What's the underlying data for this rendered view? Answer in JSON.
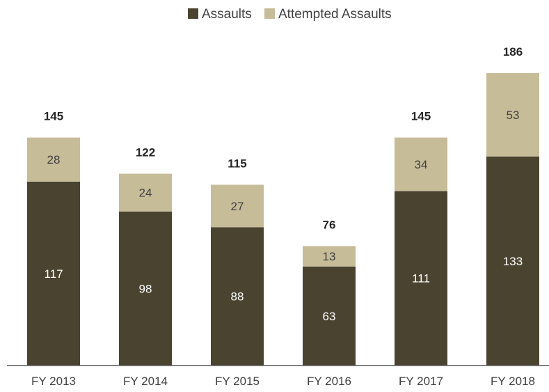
{
  "chart_data": {
    "type": "bar",
    "stacked": true,
    "categories": [
      "FY 2013",
      "FY 2014",
      "FY 2015",
      "FY 2016",
      "FY 2017",
      "FY 2018"
    ],
    "series": [
      {
        "name": "Assaults",
        "values": [
          117,
          98,
          88,
          63,
          111,
          133
        ],
        "color": "#4a4330",
        "label_color": "#ffffff"
      },
      {
        "name": "Attempted Assaults",
        "values": [
          28,
          24,
          27,
          13,
          34,
          53
        ],
        "color": "#c6bc98",
        "label_color": "#404040"
      }
    ],
    "totals": [
      145,
      122,
      115,
      76,
      145,
      186
    ],
    "legend_position": "top-center",
    "grid": false,
    "ylim": [
      0,
      186
    ]
  }
}
